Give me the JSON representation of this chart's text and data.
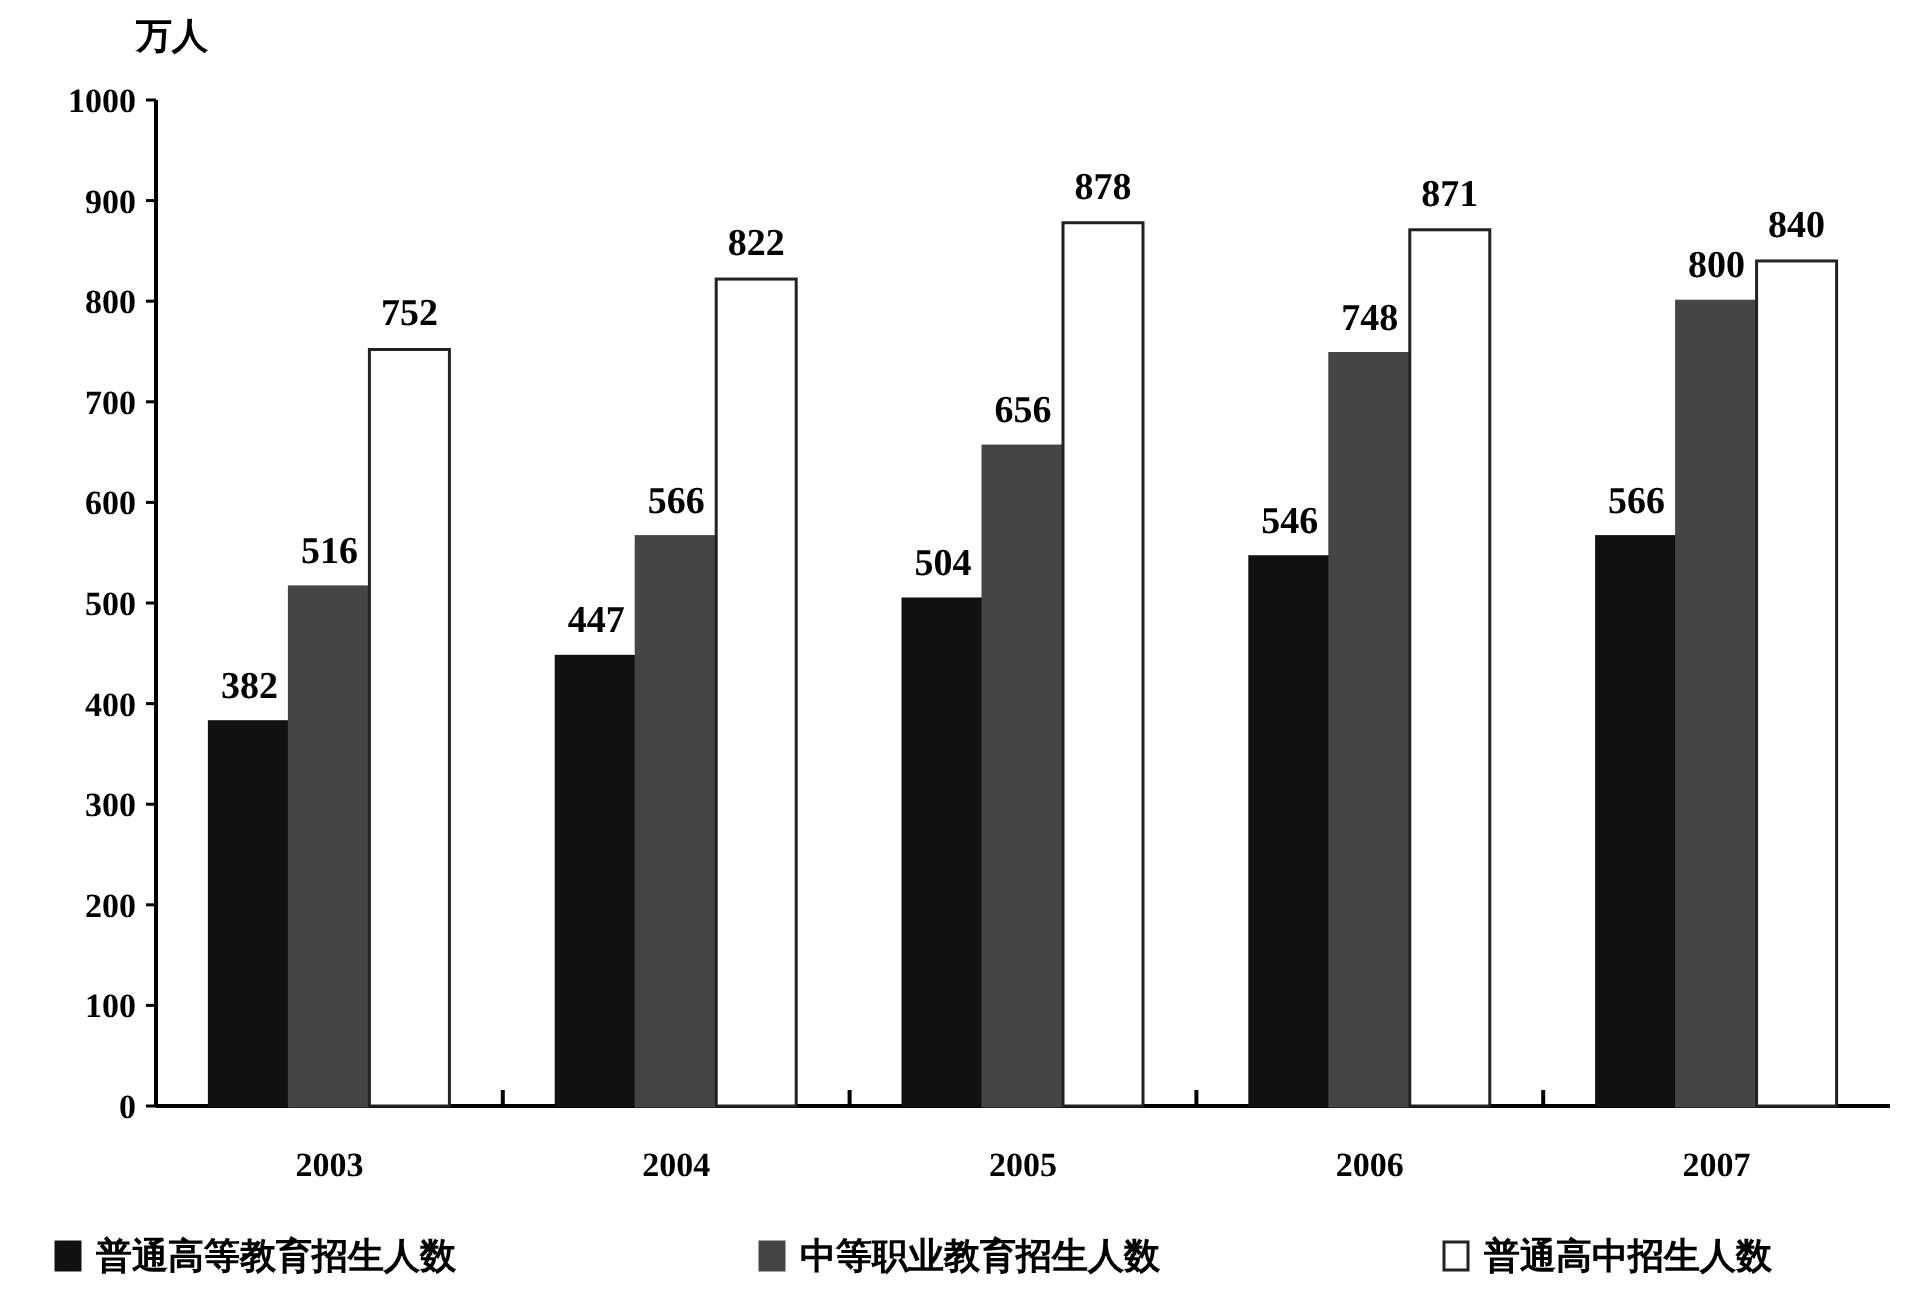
{
  "chart_data": {
    "type": "bar",
    "ylabel": "万人",
    "categories": [
      "2003",
      "2004",
      "2005",
      "2006",
      "2007"
    ],
    "series": [
      {
        "name": "普通高等教育招生人数",
        "color": "#111111",
        "values": [
          382,
          447,
          504,
          546,
          566
        ]
      },
      {
        "name": "中等职业教育招生人数",
        "color": "#454545",
        "values": [
          516,
          566,
          656,
          748,
          800
        ]
      },
      {
        "name": "普通高中招生人数",
        "color": "#ffffff",
        "values": [
          752,
          822,
          878,
          871,
          840
        ]
      }
    ],
    "ylim": [
      0,
      1000
    ],
    "yticks": [
      0,
      100,
      200,
      300,
      400,
      500,
      600,
      700,
      800,
      900,
      1000
    ],
    "data_labels": true,
    "legend": "bottom",
    "grid": false
  }
}
